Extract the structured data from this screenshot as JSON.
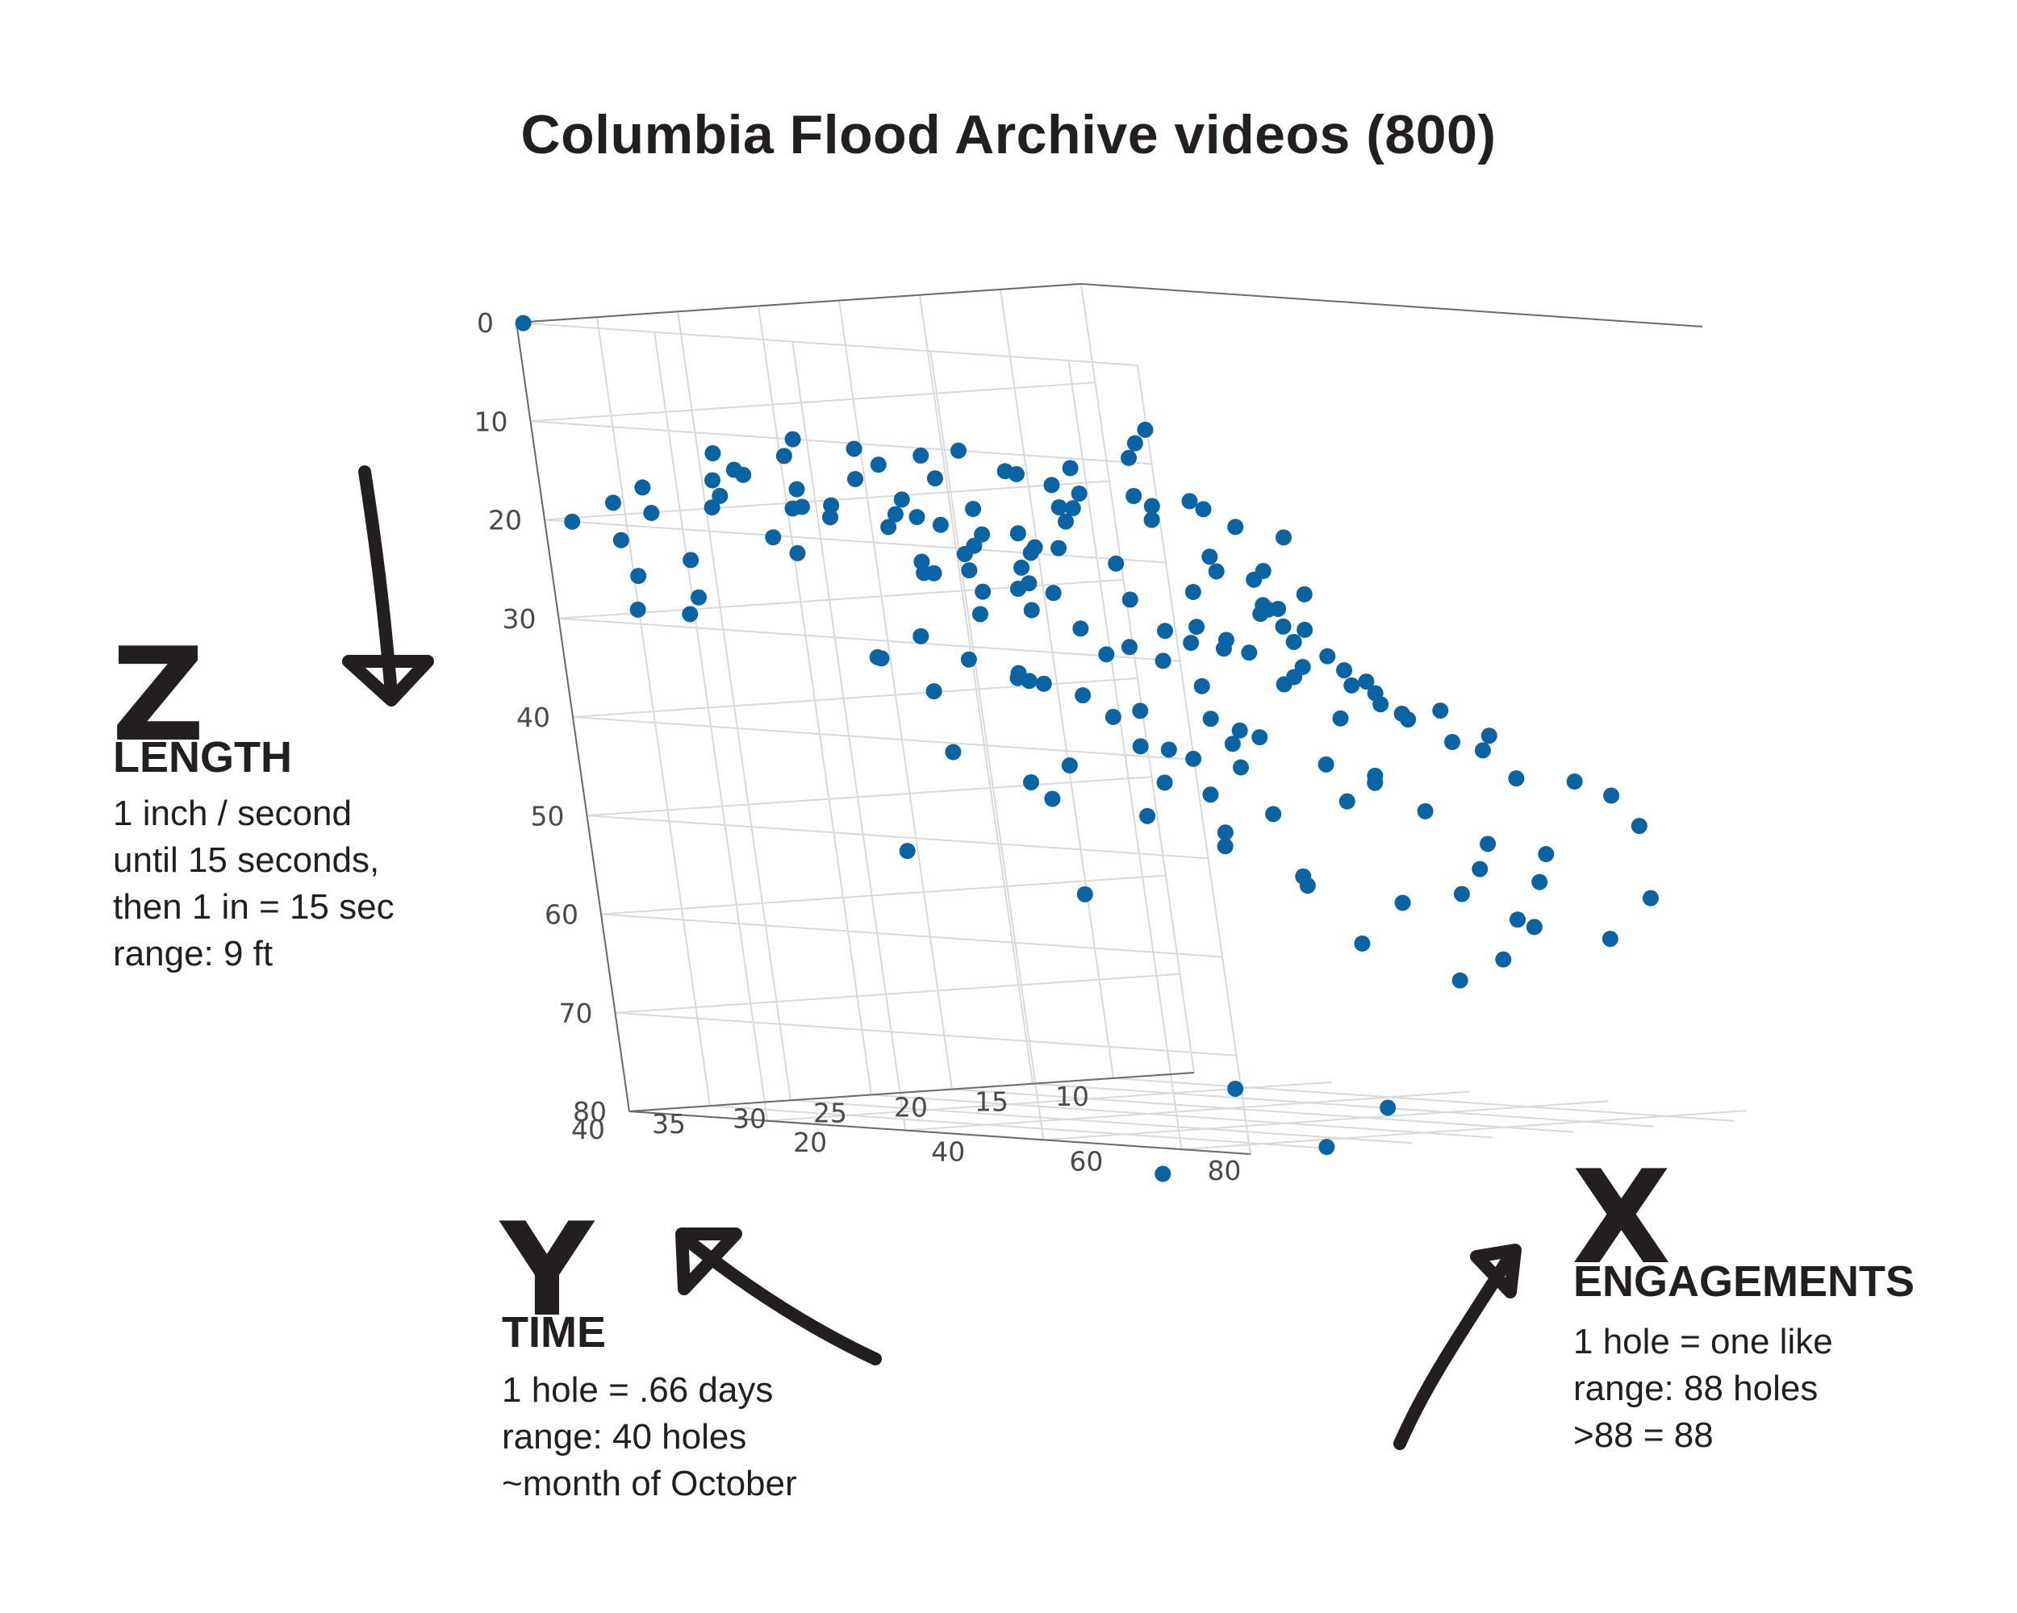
{
  "title": "Columbia Flood Archive videos (800)",
  "chart_data": {
    "type": "scatter",
    "dimensions": "3d",
    "title": "Columbia Flood Archive videos (800)",
    "point_color": "#0a64a4",
    "z_axis_reversed": true,
    "axes": {
      "x": {
        "letter": "X",
        "name": "ENGAGEMENTS",
        "ticks": [
          20,
          40,
          60,
          80
        ],
        "range": [
          0,
          90
        ],
        "notes": [
          "1 hole = one like",
          "range: 88 holes",
          ">88 = 88"
        ]
      },
      "y": {
        "letter": "Y",
        "name": "TIME",
        "ticks": [
          10,
          15,
          20,
          25,
          30,
          35,
          40
        ],
        "range": [
          5,
          40
        ],
        "notes": [
          "1 hole = .66 days",
          "range: 40 holes",
          "~month of October"
        ]
      },
      "z": {
        "letter": "Z",
        "name": "LENGTH",
        "ticks": [
          0,
          10,
          20,
          30,
          40,
          50,
          60,
          70,
          80
        ],
        "range": [
          0,
          80
        ],
        "notes": [
          "1 inch / second",
          "until 15 seconds,",
          "then 1 in = 15 sec",
          "range: 9 ft"
        ]
      }
    },
    "points": [
      [
        1,
        40,
        0
      ],
      [
        88,
        40,
        8
      ],
      [
        85,
        38,
        7
      ],
      [
        82,
        38,
        10
      ],
      [
        10,
        12,
        89
      ],
      [
        25,
        8,
        86
      ],
      [
        30,
        6,
        82
      ],
      [
        20,
        11,
        80
      ],
      [
        47,
        22,
        44
      ],
      [
        48,
        21,
        40
      ],
      [
        49,
        20,
        45
      ],
      [
        50,
        19,
        42
      ],
      [
        52,
        21,
        41
      ],
      [
        46,
        23,
        43
      ],
      [
        44,
        20,
        48
      ],
      [
        43,
        19,
        52
      ],
      [
        45,
        24,
        39
      ],
      [
        48,
        18,
        50
      ],
      [
        80,
        33,
        30
      ],
      [
        82,
        30,
        28
      ],
      [
        78,
        36,
        31
      ],
      [
        84,
        31,
        26
      ],
      [
        76,
        33,
        34
      ],
      [
        81,
        28,
        25
      ],
      [
        86,
        34,
        30
      ],
      [
        70,
        12,
        46
      ],
      [
        68,
        10,
        54
      ],
      [
        72,
        14,
        60
      ],
      [
        66,
        18,
        38
      ],
      [
        62,
        13,
        58
      ],
      [
        74,
        8,
        48
      ],
      [
        14,
        32,
        22
      ],
      [
        18,
        30,
        20
      ],
      [
        11,
        36,
        24
      ],
      [
        16,
        29,
        19
      ],
      [
        9,
        35,
        28
      ],
      [
        20,
        38,
        18
      ],
      [
        13,
        26,
        35
      ],
      [
        7,
        38,
        29
      ],
      [
        22,
        34,
        23
      ],
      [
        35,
        20,
        25
      ],
      [
        40,
        16,
        26
      ],
      [
        33,
        24,
        23
      ],
      [
        42,
        14,
        30
      ],
      [
        38,
        27,
        21
      ],
      [
        30,
        22,
        28
      ],
      [
        36,
        18,
        32
      ],
      [
        34,
        30,
        20
      ],
      [
        55,
        24,
        30
      ],
      [
        58,
        21,
        28
      ],
      [
        60,
        26,
        26
      ],
      [
        57,
        19,
        32
      ],
      [
        62,
        23,
        25
      ],
      [
        53,
        27,
        27
      ],
      [
        59,
        17,
        35
      ],
      [
        28,
        36,
        16
      ],
      [
        32,
        34,
        15
      ],
      [
        24,
        38,
        14
      ],
      [
        36,
        33,
        17
      ],
      [
        30,
        31,
        19
      ],
      [
        26,
        35,
        18
      ],
      [
        65,
        30,
        18
      ],
      [
        68,
        28,
        17
      ],
      [
        70,
        33,
        15
      ],
      [
        63,
        35,
        14
      ],
      [
        72,
        25,
        20
      ],
      [
        66,
        36,
        16
      ],
      [
        44,
        30,
        26
      ],
      [
        46,
        28,
        22
      ],
      [
        42,
        32,
        24
      ],
      [
        48,
        34,
        21
      ],
      [
        50,
        29,
        19
      ],
      [
        40,
        34,
        23
      ],
      [
        46,
        26,
        33
      ],
      [
        41,
        28,
        36
      ],
      [
        12,
        22,
        45
      ],
      [
        16,
        18,
        50
      ],
      [
        8,
        24,
        55
      ],
      [
        20,
        14,
        52
      ],
      [
        14,
        16,
        60
      ],
      [
        18,
        20,
        48
      ],
      [
        86,
        20,
        40
      ],
      [
        88,
        16,
        45
      ],
      [
        84,
        24,
        38
      ],
      [
        87,
        12,
        50
      ],
      [
        80,
        18,
        42
      ],
      [
        56,
        32,
        36
      ],
      [
        54,
        35,
        34
      ],
      [
        52,
        37,
        32
      ],
      [
        60,
        32,
        38
      ],
      [
        58,
        36,
        34
      ],
      [
        24,
        28,
        32
      ],
      [
        22,
        30,
        34
      ],
      [
        26,
        25,
        30
      ],
      [
        20,
        26,
        38
      ],
      [
        28,
        24,
        36
      ],
      [
        75,
        22,
        36
      ],
      [
        73,
        26,
        34
      ],
      [
        77,
        19,
        38
      ],
      [
        71,
        29,
        30
      ],
      [
        78,
        24,
        44
      ],
      [
        38,
        12,
        38
      ],
      [
        36,
        8,
        42
      ],
      [
        40,
        10,
        50
      ],
      [
        34,
        14,
        44
      ],
      [
        32,
        10,
        58
      ],
      [
        64,
        20,
        33
      ],
      [
        66,
        22,
        30
      ],
      [
        62,
        17,
        36
      ],
      [
        67,
        25,
        28
      ],
      [
        61,
        27,
        31
      ],
      [
        90,
        38,
        14
      ],
      [
        89,
        35,
        17
      ],
      [
        87,
        36,
        20
      ],
      [
        85,
        32,
        22
      ],
      [
        4,
        40,
        20
      ],
      [
        6,
        38,
        22
      ],
      [
        3,
        36,
        26
      ],
      [
        8,
        39,
        18
      ],
      [
        5,
        34,
        30
      ],
      [
        30,
        40,
        14
      ],
      [
        34,
        39,
        12
      ],
      [
        38,
        40,
        10
      ],
      [
        26,
        40,
        12
      ],
      [
        42,
        38,
        11
      ],
      [
        50,
        40,
        12
      ],
      [
        54,
        39,
        11
      ],
      [
        58,
        40,
        13
      ],
      [
        62,
        40,
        10
      ],
      [
        66,
        39,
        12
      ],
      [
        45,
        36,
        18
      ],
      [
        47,
        33,
        20
      ],
      [
        43,
        37,
        19
      ],
      [
        49,
        31,
        22
      ],
      [
        51,
        35,
        17
      ],
      [
        36,
        26,
        29
      ],
      [
        38,
        24,
        31
      ],
      [
        34,
        28,
        27
      ],
      [
        40,
        22,
        33
      ],
      [
        32,
        30,
        25
      ],
      [
        56,
        12,
        50
      ],
      [
        58,
        10,
        56
      ],
      [
        54,
        14,
        47
      ],
      [
        60,
        8,
        62
      ],
      [
        52,
        16,
        45
      ],
      [
        46,
        10,
        60
      ],
      [
        44,
        12,
        64
      ],
      [
        48,
        8,
        68
      ],
      [
        42,
        14,
        58
      ],
      [
        50,
        6,
        66
      ],
      [
        70,
        40,
        12
      ],
      [
        74,
        38,
        14
      ],
      [
        78,
        40,
        11
      ],
      [
        82,
        37,
        15
      ],
      [
        68,
        36,
        16
      ],
      [
        15,
        40,
        16
      ],
      [
        19,
        37,
        17
      ],
      [
        23,
        39,
        15
      ],
      [
        11,
        38,
        19
      ],
      [
        27,
        36,
        18
      ],
      [
        76,
        14,
        56
      ],
      [
        78,
        11,
        62
      ],
      [
        74,
        16,
        52
      ],
      [
        80,
        9,
        58
      ],
      [
        28,
        16,
        48
      ],
      [
        26,
        12,
        55
      ],
      [
        30,
        18,
        44
      ],
      [
        24,
        20,
        46
      ],
      [
        64,
        38,
        22
      ],
      [
        60,
        36,
        24
      ],
      [
        56,
        38,
        21
      ],
      [
        52,
        39,
        23
      ],
      [
        86,
        28,
        34
      ],
      [
        88,
        26,
        37
      ],
      [
        84,
        30,
        32
      ],
      [
        90,
        24,
        40
      ]
    ]
  }
}
